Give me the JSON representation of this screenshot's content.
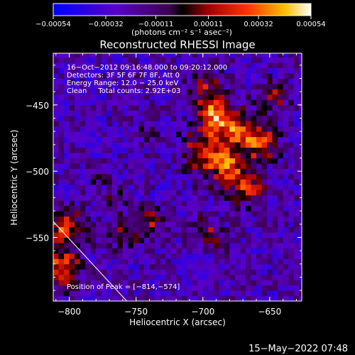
{
  "chart_data": {
    "type": "heatmap",
    "title": "Reconstructed RHESSI Image",
    "xlabel": "Heliocentric X (arcsec)",
    "ylabel": "Heliocentric Y (arcsec)",
    "xlim": [
      -812,
      -626
    ],
    "ylim": [
      -598,
      -411
    ],
    "x_ticks": [
      -800,
      -750,
      -700,
      -650
    ],
    "y_ticks": [
      -450,
      -500,
      -550
    ],
    "x_tick_labels": [
      "−800",
      "−750",
      "−700",
      "−650"
    ],
    "y_tick_labels": [
      "−450",
      "−500",
      "−550"
    ],
    "colorbar": {
      "min": -0.00054,
      "max": 0.00054,
      "ticks": [
        -0.00054,
        -0.00032,
        -0.00011,
        0.00011,
        0.00032,
        0.00054
      ],
      "tick_labels": [
        "−0.00054",
        "−0.00032",
        "−0.00011",
        "0.00011",
        "0.00032",
        "0.00054"
      ],
      "unit_label": "(photons cm⁻² s⁻¹ asec⁻²)"
    },
    "annotations": [
      "16−Oct−2012 09:16:48.000 to 09:20:12.000",
      "Detectors: 3F 5F 6F 7F 8F, Att 0",
      "Energy Range: 12.0 − 25.0 keV",
      "Clean     Total counts: 2.92E+03"
    ],
    "peak_label": "Position of Peak = [−814,−574]",
    "peak_position": [
      -814,
      -574
    ],
    "limb_line": [
      [
        -812,
        -538
      ],
      [
        -757,
        -598
      ]
    ],
    "sources": [
      {
        "x": -692,
        "y": -459,
        "r": 8,
        "amp": 0.00054
      },
      {
        "x": -676,
        "y": -470,
        "r": 10,
        "amp": 0.00045
      },
      {
        "x": -658,
        "y": -480,
        "r": 9,
        "amp": 0.00042
      },
      {
        "x": -700,
        "y": -485,
        "r": 12,
        "amp": 0.0004
      },
      {
        "x": -682,
        "y": -500,
        "r": 11,
        "amp": 0.00043
      },
      {
        "x": -668,
        "y": -515,
        "r": 9,
        "amp": 0.00035
      },
      {
        "x": -700,
        "y": -440,
        "r": 9,
        "amp": 0.0003
      },
      {
        "x": -650,
        "y": -445,
        "r": 8,
        "amp": 0.00028
      },
      {
        "x": -742,
        "y": -540,
        "r": 7,
        "amp": 0.0003
      },
      {
        "x": -760,
        "y": -548,
        "r": 8,
        "amp": 0.00028
      },
      {
        "x": -770,
        "y": -525,
        "r": 6,
        "amp": 0.00024
      },
      {
        "x": -700,
        "y": -545,
        "r": 6,
        "amp": 0.00028
      },
      {
        "x": -690,
        "y": -555,
        "r": 6,
        "amp": 0.00022
      },
      {
        "x": -805,
        "y": -545,
        "r": 10,
        "amp": 0.00045
      },
      {
        "x": -808,
        "y": -575,
        "r": 10,
        "amp": 0.0005
      },
      {
        "x": -780,
        "y": -505,
        "r": 5,
        "amp": 0.00018
      },
      {
        "x": -745,
        "y": -470,
        "r": 6,
        "amp": 0.00015
      }
    ],
    "background": -0.00024
  },
  "footer": {
    "timestamp": "15−May−2022 07:48"
  },
  "colors": {
    "background": "#000000",
    "text": "#ffffff",
    "axis": "#ffffff"
  }
}
